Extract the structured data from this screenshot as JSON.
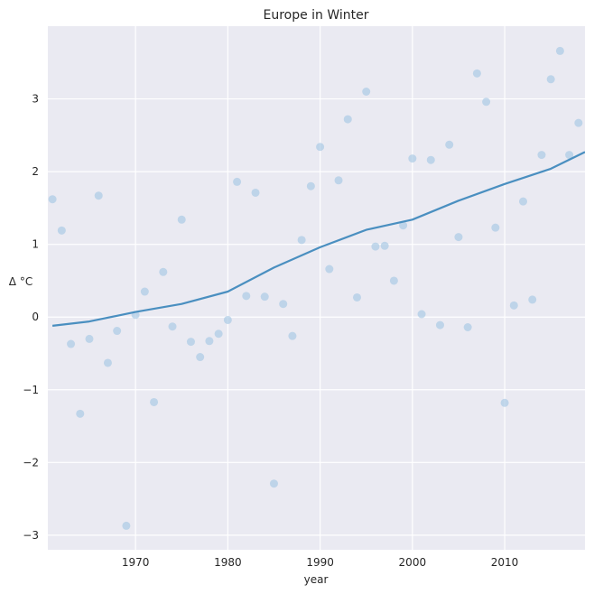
{
  "chart_data": {
    "type": "scatter",
    "title": "Europe in Winter",
    "xlabel": "year",
    "ylabel": "Δ °C",
    "xlim": [
      1960.5,
      2018.7
    ],
    "ylim": [
      -3.2,
      4.0
    ],
    "xticks": [
      1970,
      1980,
      1990,
      2000,
      2010
    ],
    "yticks": [
      -3,
      -2,
      -1,
      0,
      1,
      2,
      3
    ],
    "grid": true,
    "colors": {
      "background": "#eaeaf2",
      "grid": "#ffffff",
      "points": "#a6c8e4",
      "line": "#4a8fc0"
    },
    "series": [
      {
        "type": "scatter",
        "x": [
          1961,
          1962,
          1963,
          1964,
          1965,
          1966,
          1967,
          1968,
          1969,
          1970,
          1971,
          1972,
          1973,
          1974,
          1975,
          1976,
          1977,
          1978,
          1979,
          1980,
          1981,
          1982,
          1983,
          1984,
          1985,
          1986,
          1987,
          1988,
          1989,
          1990,
          1991,
          1992,
          1993,
          1994,
          1995,
          1996,
          1997,
          1998,
          1999,
          2000,
          2001,
          2002,
          2003,
          2004,
          2005,
          2006,
          2007,
          2008,
          2009,
          2010,
          2011,
          2012,
          2013,
          2014,
          2015,
          2016,
          2017,
          2018
        ],
        "y": [
          1.62,
          1.19,
          -0.37,
          -1.33,
          -0.3,
          1.67,
          -0.63,
          -0.19,
          -2.87,
          0.03,
          0.35,
          -1.17,
          0.62,
          -0.13,
          1.34,
          -0.34,
          -0.55,
          -0.33,
          -0.23,
          -0.04,
          1.86,
          0.29,
          1.71,
          0.28,
          -2.29,
          0.18,
          -0.26,
          1.06,
          1.8,
          2.34,
          0.66,
          1.88,
          2.72,
          0.27,
          3.1,
          0.97,
          0.98,
          0.5,
          1.26,
          2.18,
          0.04,
          2.16,
          -0.11,
          2.37,
          1.1,
          -0.14,
          3.35,
          2.96,
          1.23,
          -1.18,
          0.16,
          1.59,
          0.24,
          2.23,
          3.27,
          3.66,
          2.23,
          2.67
        ]
      },
      {
        "type": "line",
        "x": [
          1961,
          1965,
          1970,
          1975,
          1980,
          1985,
          1990,
          1995,
          2000,
          2005,
          2010,
          2015,
          2018.7
        ],
        "y": [
          -0.12,
          -0.06,
          0.07,
          0.18,
          0.35,
          0.68,
          0.96,
          1.2,
          1.34,
          1.6,
          1.83,
          2.04,
          2.27
        ]
      }
    ]
  }
}
